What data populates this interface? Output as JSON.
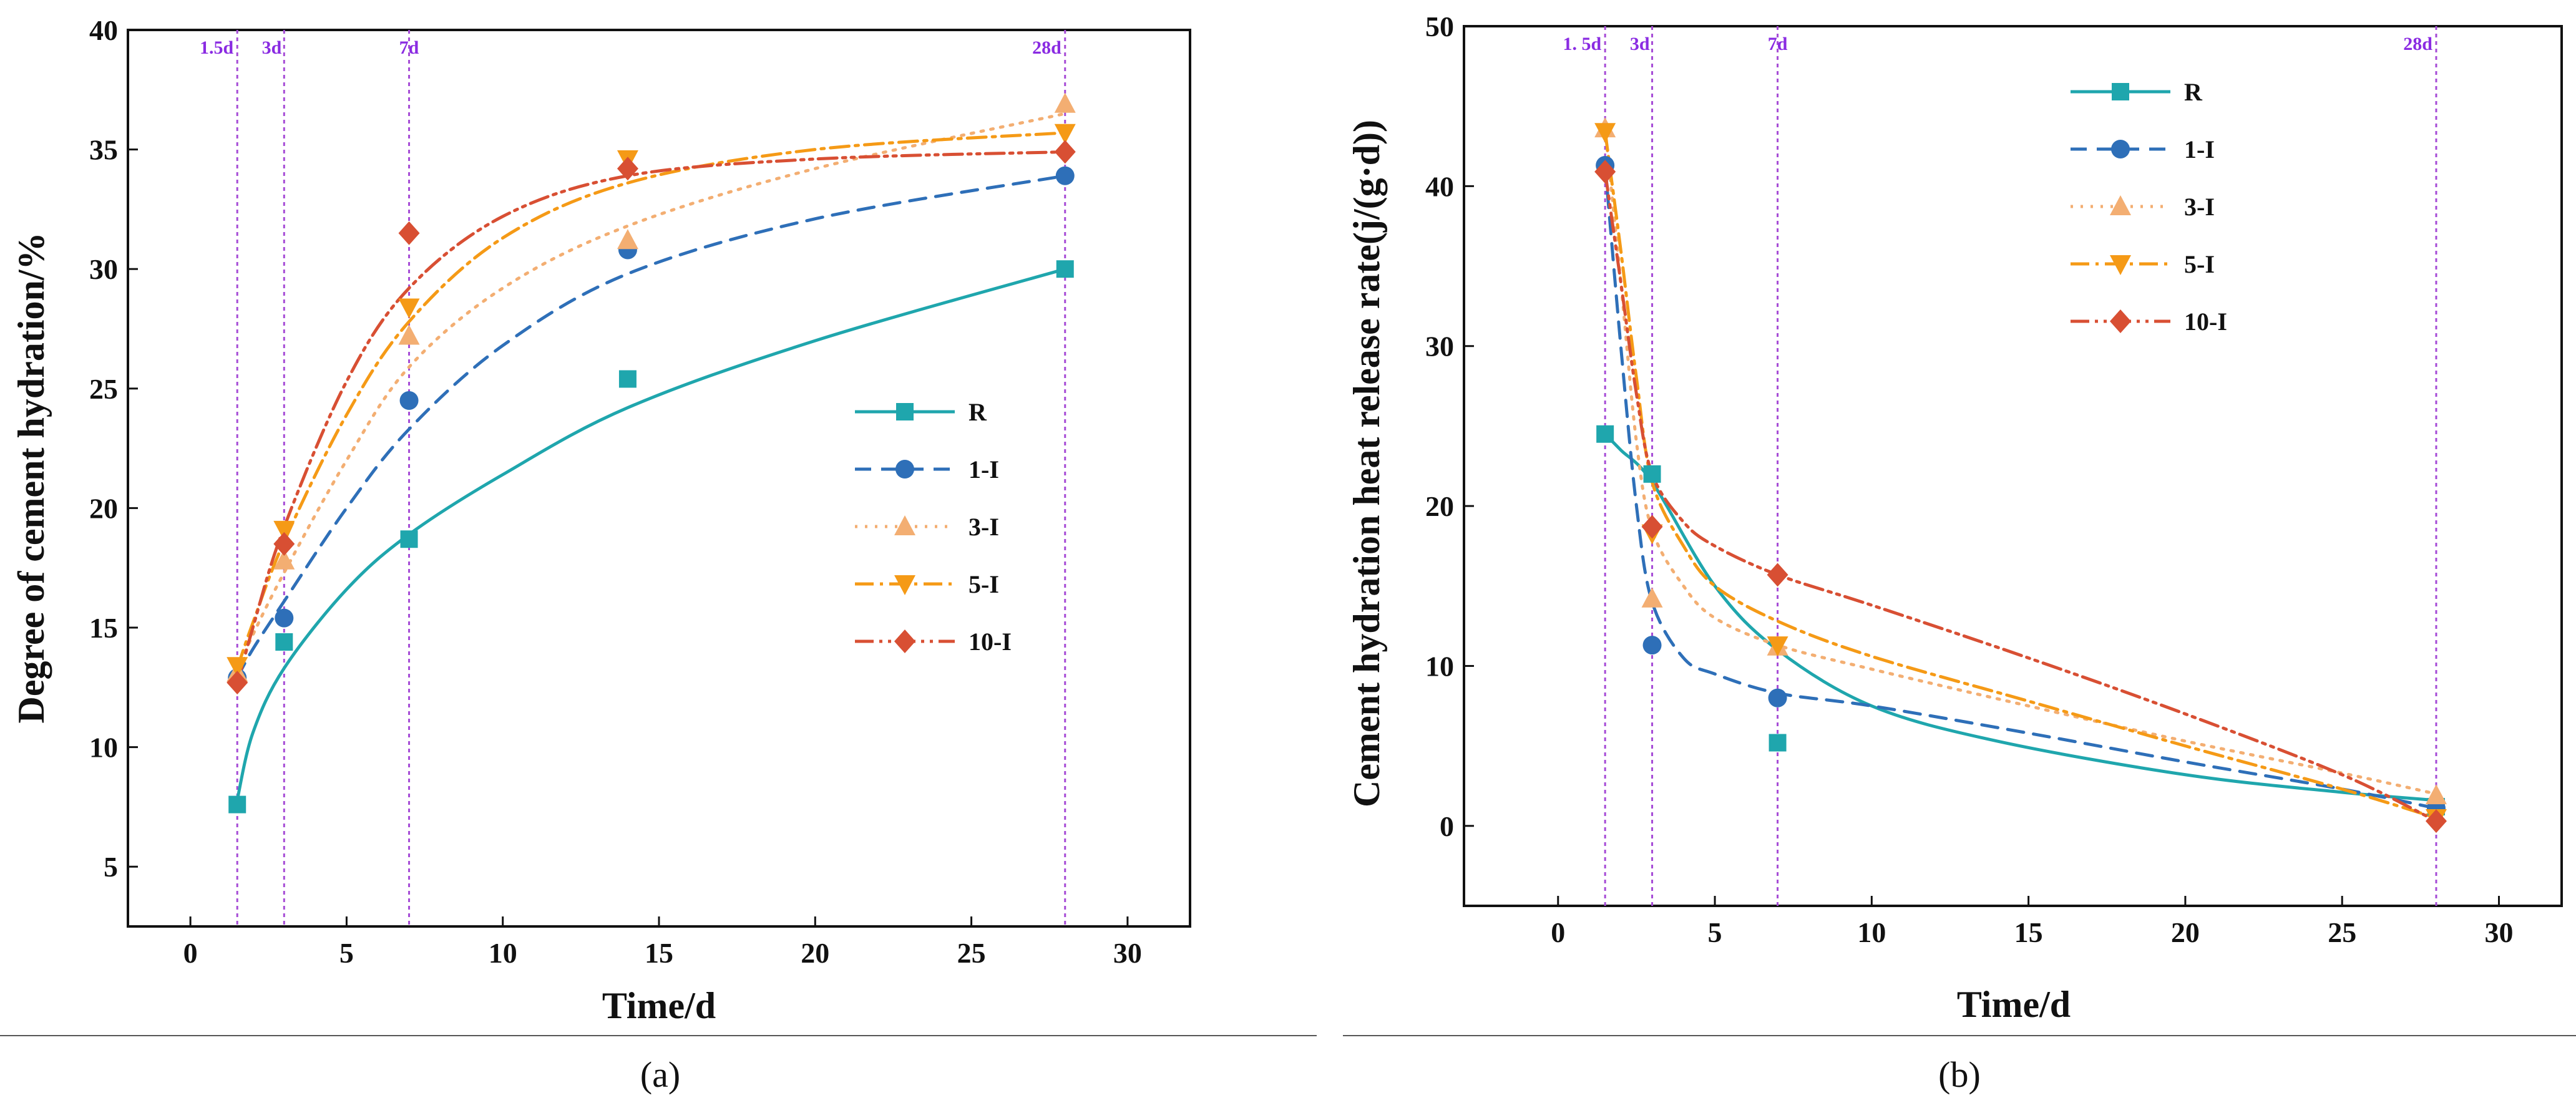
{
  "captions": [
    "(a)",
    "(b)"
  ],
  "series_style": {
    "R": {
      "color": "#1fa6ad",
      "dash": "",
      "marker": "square"
    },
    "1-I": {
      "color": "#2e6fb8",
      "dash": "26,16",
      "marker": "circle"
    },
    "3-I": {
      "color": "#f3ae72",
      "dash": "4,12",
      "marker": "triangle-up"
    },
    "5-I": {
      "color": "#f59a16",
      "dash": "30,10,5,10",
      "marker": "triangle-down"
    },
    "10-I": {
      "color": "#d84f33",
      "dash": "30,9,5,9,5,9",
      "marker": "diamond"
    }
  },
  "chart_data": [
    {
      "type": "scatter",
      "title": "",
      "xlabel": "Time/d",
      "ylabel": "Degree of cement hydration/%",
      "xlim": [
        -2,
        32
      ],
      "ylim": [
        2.5,
        40
      ],
      "xticks": [
        0,
        5,
        10,
        15,
        20,
        25,
        30
      ],
      "yticks": [
        5,
        10,
        15,
        20,
        25,
        30,
        35,
        40
      ],
      "age_lines": [
        {
          "x": 1.5,
          "label": "1.5d"
        },
        {
          "x": 3,
          "label": "3d"
        },
        {
          "x": 7,
          "label": "7d"
        },
        {
          "x": 28,
          "label": "28d"
        }
      ],
      "legend_position": "center-right",
      "x": [
        1.5,
        3,
        7,
        14,
        28
      ],
      "series": [
        {
          "name": "R",
          "values": [
            7.6,
            14.4,
            18.7,
            25.4,
            30.0
          ],
          "fit": [
            [
              1.5,
              7.8
            ],
            [
              2,
              10.6
            ],
            [
              3,
              13.3
            ],
            [
              5,
              16.6
            ],
            [
              7,
              18.9
            ],
            [
              10,
              21.4
            ],
            [
              14,
              24.2
            ],
            [
              20,
              27.0
            ],
            [
              28,
              30.0
            ]
          ]
        },
        {
          "name": "1-I",
          "values": [
            12.9,
            15.4,
            24.5,
            30.8,
            33.9
          ],
          "fit": [
            [
              1.5,
              12.9
            ],
            [
              2,
              14.1
            ],
            [
              3,
              16.1
            ],
            [
              5,
              20.0
            ],
            [
              7,
              23.3
            ],
            [
              10,
              26.8
            ],
            [
              14,
              29.8
            ],
            [
              20,
              32.1
            ],
            [
              28,
              33.9
            ]
          ]
        },
        {
          "name": "3-I",
          "values": [
            13.1,
            17.8,
            27.2,
            31.2,
            36.9
          ],
          "fit": [
            [
              1.5,
              13.2
            ],
            [
              2,
              14.7
            ],
            [
              3,
              17.3
            ],
            [
              5,
              22.0
            ],
            [
              7,
              25.9
            ],
            [
              10,
              29.2
            ],
            [
              14,
              31.8
            ],
            [
              20,
              34.2
            ],
            [
              28,
              36.5
            ]
          ]
        },
        {
          "name": "5-I",
          "values": [
            13.4,
            19.1,
            28.4,
            34.6,
            35.7
          ],
          "fit": [
            [
              1.5,
              13.3
            ],
            [
              2,
              15.2
            ],
            [
              3,
              18.6
            ],
            [
              5,
              23.9
            ],
            [
              7,
              27.8
            ],
            [
              10,
              31.3
            ],
            [
              14,
              33.6
            ],
            [
              20,
              35.0
            ],
            [
              28,
              35.7
            ]
          ]
        },
        {
          "name": "10-I",
          "values": [
            12.7,
            18.5,
            31.5,
            34.2,
            34.9
          ],
          "fit": [
            [
              1.5,
              12.6
            ],
            [
              2,
              15.0
            ],
            [
              3,
              19.2
            ],
            [
              5,
              25.3
            ],
            [
              7,
              29.2
            ],
            [
              10,
              32.2
            ],
            [
              14,
              33.9
            ],
            [
              20,
              34.6
            ],
            [
              28,
              34.9
            ]
          ]
        }
      ]
    },
    {
      "type": "scatter",
      "title": "",
      "xlabel": "Time/d",
      "ylabel": "Cement hydration heat release rate(j/(g·d))",
      "xlim": [
        -3,
        32
      ],
      "ylim": [
        -5,
        50
      ],
      "xticks": [
        0,
        5,
        10,
        15,
        20,
        25,
        30
      ],
      "yticks": [
        0,
        10,
        20,
        30,
        40,
        50
      ],
      "age_lines": [
        {
          "x": 1.5,
          "label": "1. 5d"
        },
        {
          "x": 3,
          "label": "3d"
        },
        {
          "x": 7,
          "label": "7d"
        },
        {
          "x": 28,
          "label": "28d"
        }
      ],
      "legend_position": "top-center",
      "x": [
        1.5,
        3,
        7,
        28
      ],
      "series": [
        {
          "name": "R",
          "values": [
            24.5,
            22.0,
            5.2,
            1.2
          ],
          "fit": [
            [
              1.5,
              24.5
            ],
            [
              2,
              23.5
            ],
            [
              3,
              21.5
            ],
            [
              5,
              15.0
            ],
            [
              7,
              11.0
            ],
            [
              10,
              7.5
            ],
            [
              14,
              5.3
            ],
            [
              20,
              3.2
            ],
            [
              25,
              2.1
            ],
            [
              28,
              1.6
            ]
          ]
        },
        {
          "name": "1-I",
          "values": [
            41.3,
            11.3,
            8.0,
            1.1
          ],
          "fit": [
            [
              1.5,
              41.3
            ],
            [
              2,
              30.0
            ],
            [
              2.5,
              20.0
            ],
            [
              3,
              14.0
            ],
            [
              4,
              10.5
            ],
            [
              5,
              9.5
            ],
            [
              7,
              8.3
            ],
            [
              10,
              7.5
            ],
            [
              15,
              5.8
            ],
            [
              20,
              4.0
            ],
            [
              25,
              2.3
            ],
            [
              28,
              1.1
            ]
          ]
        },
        {
          "name": "3-I",
          "values": [
            43.6,
            14.2,
            11.2,
            1.9
          ],
          "fit": [
            [
              1.5,
              43.6
            ],
            [
              2,
              34.0
            ],
            [
              2.5,
              24.0
            ],
            [
              3,
              18.5
            ],
            [
              4,
              15.0
            ],
            [
              5,
              13.0
            ],
            [
              7,
              11.3
            ],
            [
              10,
              9.8
            ],
            [
              15,
              7.5
            ],
            [
              20,
              5.3
            ],
            [
              25,
              3.3
            ],
            [
              28,
              2.0
            ]
          ]
        },
        {
          "name": "5-I",
          "values": [
            43.4,
            18.3,
            11.3,
            0.5
          ],
          "fit": [
            [
              1.5,
              43.4
            ],
            [
              2,
              36.0
            ],
            [
              2.5,
              28.0
            ],
            [
              3,
              21.5
            ],
            [
              4,
              17.5
            ],
            [
              5,
              15.0
            ],
            [
              7,
              12.8
            ],
            [
              10,
              10.6
            ],
            [
              15,
              7.8
            ],
            [
              20,
              5.0
            ],
            [
              25,
              2.3
            ],
            [
              28,
              0.5
            ]
          ]
        },
        {
          "name": "10-I",
          "values": [
            40.9,
            18.7,
            15.7,
            0.3
          ],
          "fit": [
            [
              1.5,
              40.9
            ],
            [
              2,
              34.0
            ],
            [
              2.5,
              27.0
            ],
            [
              3,
              22.0
            ],
            [
              4,
              19.0
            ],
            [
              5,
              17.5
            ],
            [
              7,
              15.7
            ],
            [
              10,
              13.8
            ],
            [
              15,
              10.5
            ],
            [
              20,
              7.0
            ],
            [
              25,
              3.2
            ],
            [
              28,
              0.3
            ]
          ]
        }
      ]
    }
  ]
}
